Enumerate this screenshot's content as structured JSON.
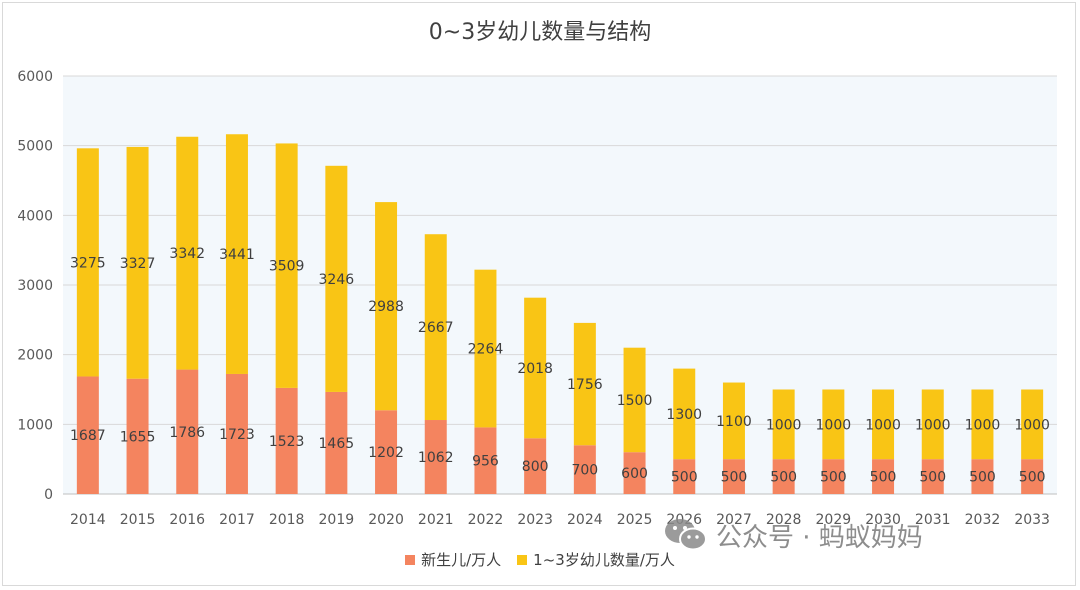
{
  "chart_data": {
    "type": "bar",
    "stacked": true,
    "title": "0~3岁幼儿数量与结构",
    "categories": [
      "2014",
      "2015",
      "2016",
      "2017",
      "2018",
      "2019",
      "2020",
      "2021",
      "2022",
      "2023",
      "2024",
      "2025",
      "2026",
      "2027",
      "2028",
      "2029",
      "2030",
      "2031",
      "2032",
      "2033"
    ],
    "series": [
      {
        "name": "新生儿/万人",
        "color": "#F4845F",
        "values": [
          1687,
          1655,
          1786,
          1723,
          1523,
          1465,
          1202,
          1062,
          956,
          800,
          700,
          600,
          500,
          500,
          500,
          500,
          500,
          500,
          500,
          500
        ]
      },
      {
        "name": "1~3岁幼儿数量/万人",
        "color": "#F9C515",
        "values": [
          3275,
          3327,
          3342,
          3441,
          3509,
          3246,
          2988,
          2667,
          2264,
          2018,
          1756,
          1500,
          1300,
          1100,
          1000,
          1000,
          1000,
          1000,
          1000,
          1000
        ]
      }
    ],
    "ylim": [
      0,
      6000
    ],
    "yticks": [
      0,
      1000,
      2000,
      3000,
      4000,
      5000,
      6000
    ],
    "grid": true,
    "legend_position": "bottom",
    "plot_background": "#F3F8FC"
  },
  "watermark": {
    "text": "公众号 · 蚂蚁妈妈",
    "icon": "wechat-icon"
  }
}
